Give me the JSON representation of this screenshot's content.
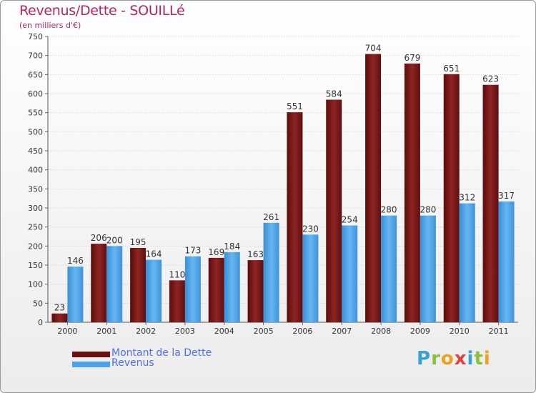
{
  "title": "Revenus/Dette - SOUILLé",
  "subtitle": "(en milliers d'€)",
  "colors": {
    "dette": "#7a1515",
    "revenus": "#4aa3e8",
    "title": "#b5245f",
    "legend_text": "#4f6ee8"
  },
  "chart_data": {
    "type": "bar",
    "categories": [
      "2000",
      "2001",
      "2002",
      "2003",
      "2004",
      "2005",
      "2006",
      "2007",
      "2008",
      "2009",
      "2010",
      "2011"
    ],
    "series": [
      {
        "name": "Montant de la Dette",
        "color": "#7a1515",
        "values": [
          23,
          206,
          195,
          110,
          169,
          163,
          551,
          584,
          704,
          679,
          651,
          623
        ]
      },
      {
        "name": "Revenus",
        "color": "#4aa3e8",
        "values": [
          146,
          200,
          164,
          173,
          184,
          261,
          230,
          254,
          280,
          280,
          312,
          317
        ]
      }
    ],
    "ylim": [
      0,
      750
    ],
    "yticks": [
      0,
      50,
      100,
      150,
      200,
      250,
      300,
      350,
      400,
      450,
      500,
      550,
      600,
      650,
      700,
      750
    ],
    "grid": true,
    "legend_position": "bottom-left",
    "xlabel": "",
    "ylabel": ""
  },
  "legend": {
    "items": [
      {
        "label": "Montant de la Dette",
        "color": "#7a1515"
      },
      {
        "label": "Revenus",
        "color": "#4aa3e8"
      }
    ]
  },
  "logo": {
    "letters": [
      {
        "ch": "P",
        "color": "#3aa0d8"
      },
      {
        "ch": "r",
        "color": "#8dbf3a"
      },
      {
        "ch": "o",
        "color": "#f0a020"
      },
      {
        "ch": "x",
        "color": "#e04040"
      },
      {
        "ch": "i",
        "color": "#3aa0d8"
      },
      {
        "ch": "t",
        "color": "#8dbf3a"
      },
      {
        "ch": "i",
        "color": "#f0a020"
      }
    ]
  }
}
